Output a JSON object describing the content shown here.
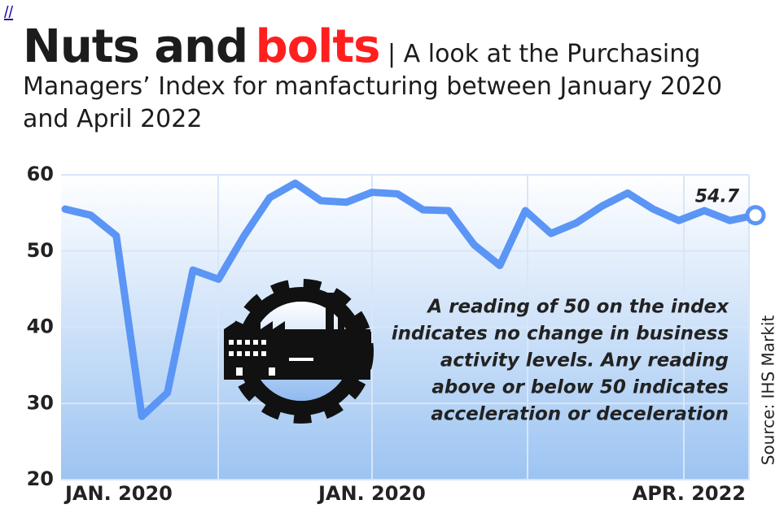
{
  "link_text": "//",
  "chart_data": {
    "type": "line",
    "title": "Nuts and",
    "title_highlight": "bolts",
    "subtitle": "| A look at the Purchasing Managers’ Index for manfacturing between January 2020 and April 2022",
    "categories": [
      "JAN. 2020",
      null,
      null,
      null,
      null,
      null,
      null,
      null,
      null,
      null,
      null,
      null,
      "JAN. 2020",
      null,
      null,
      null,
      null,
      null,
      null,
      null,
      null,
      null,
      null,
      null,
      null,
      null,
      null,
      "APR. 2022"
    ],
    "values": [
      55.5,
      54.7,
      52,
      28.3,
      31.4,
      47.5,
      46.3,
      52,
      57,
      58.9,
      56.6,
      56.4,
      57.7,
      57.5,
      55.4,
      55.3,
      50.8,
      48.1,
      55.3,
      52.3,
      53.7,
      55.9,
      57.6,
      55.5,
      54,
      55.3,
      54,
      54.7
    ],
    "color": "#5b95f5",
    "ylim": [
      20,
      60
    ],
    "yticks": [
      20,
      30,
      40,
      50,
      60
    ],
    "grid": true,
    "annotation": [
      "A reading of 50 on the index",
      "indicates no change in business",
      "activity levels. Any reading",
      "above or below 50 indicates",
      "acceleration or deceleration"
    ],
    "source": "Source: IHS Markit"
  }
}
